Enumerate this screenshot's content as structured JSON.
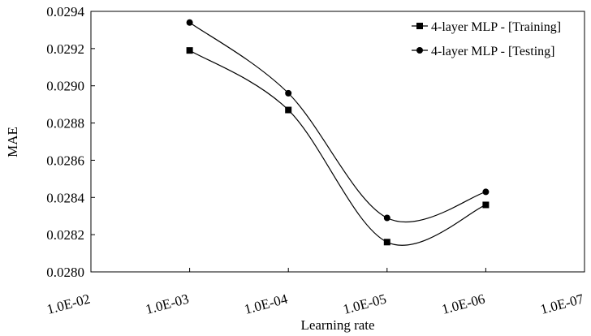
{
  "chart_data": {
    "type": "line",
    "title": "",
    "xlabel": "Learning rate",
    "ylabel": "MAE",
    "x_categories": [
      "1.0E-02",
      "1.0E-03",
      "1.0E-04",
      "1.0E-05",
      "1.0E-06",
      "1.0E-07"
    ],
    "ylim": [
      0.028,
      0.0294
    ],
    "y_ticks": [
      "0.0280",
      "0.0282",
      "0.0284",
      "0.0286",
      "0.0288",
      "0.0290",
      "0.0292",
      "0.0294"
    ],
    "grid": false,
    "legend_position": "top-right",
    "series": [
      {
        "name": "4-layer MLP - [Training]",
        "marker": "square",
        "x": [
          "1.0E-03",
          "1.0E-04",
          "1.0E-05",
          "1.0E-06"
        ],
        "values": [
          0.02919,
          0.02887,
          0.02816,
          0.02836
        ]
      },
      {
        "name": "4-layer MLP - [Testing]",
        "marker": "circle",
        "x": [
          "1.0E-03",
          "1.0E-04",
          "1.0E-05",
          "1.0E-06"
        ],
        "values": [
          0.02934,
          0.02896,
          0.02829,
          0.02843
        ]
      }
    ],
    "line_color": "#000000"
  }
}
